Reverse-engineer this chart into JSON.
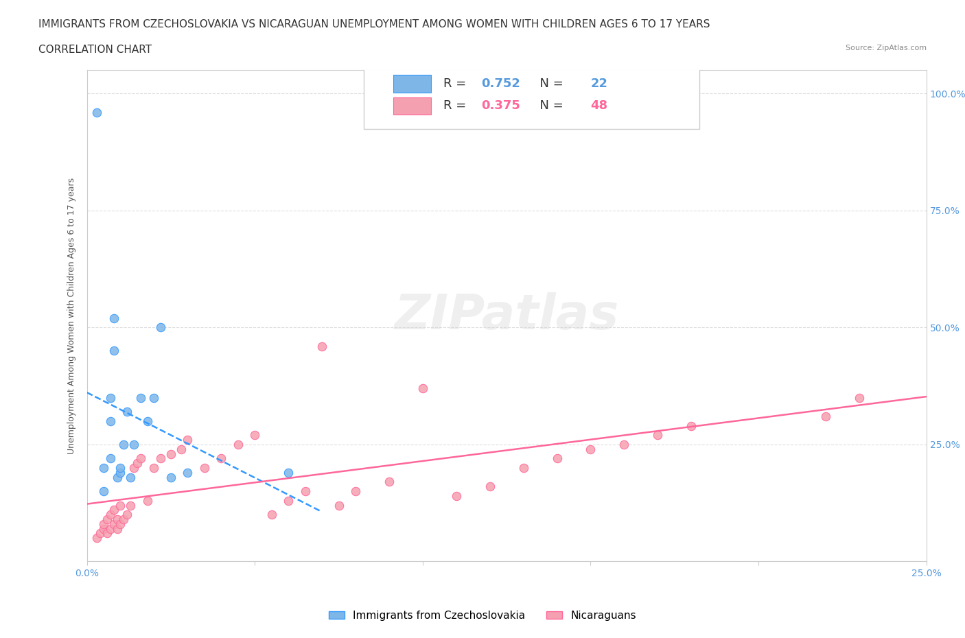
{
  "title_line1": "IMMIGRANTS FROM CZECHOSLOVAKIA VS NICARAGUAN UNEMPLOYMENT AMONG WOMEN WITH CHILDREN AGES 6 TO 17 YEARS",
  "title_line2": "CORRELATION CHART",
  "source_text": "Source: ZipAtlas.com",
  "xlabel": "",
  "ylabel": "Unemployment Among Women with Children Ages 6 to 17 years",
  "xlim": [
    0.0,
    0.25
  ],
  "ylim": [
    0.0,
    1.05
  ],
  "x_ticks": [
    0.0,
    0.05,
    0.1,
    0.15,
    0.2,
    0.25
  ],
  "x_tick_labels": [
    "0.0%",
    "",
    "",
    "",
    "",
    "25.0%"
  ],
  "y_ticks": [
    0.0,
    0.25,
    0.5,
    0.75,
    1.0
  ],
  "y_tick_labels": [
    "",
    "25.0%",
    "50.0%",
    "75.0%",
    "100.0%"
  ],
  "blue_color": "#7EB6E8",
  "pink_color": "#F5A0B0",
  "blue_line_color": "#3399FF",
  "pink_line_color": "#FF6699",
  "legend_box_color": "#F0F4FF",
  "watermark_text": "ZIPatlas",
  "R_blue": 0.752,
  "N_blue": 22,
  "R_pink": 0.375,
  "N_pink": 48,
  "blue_scatter_x": [
    0.005,
    0.005,
    0.007,
    0.007,
    0.007,
    0.008,
    0.008,
    0.009,
    0.01,
    0.01,
    0.011,
    0.012,
    0.013,
    0.014,
    0.016,
    0.018,
    0.02,
    0.022,
    0.025,
    0.03,
    0.06,
    0.003
  ],
  "blue_scatter_y": [
    0.15,
    0.2,
    0.22,
    0.3,
    0.35,
    0.45,
    0.52,
    0.18,
    0.19,
    0.2,
    0.25,
    0.32,
    0.18,
    0.25,
    0.35,
    0.3,
    0.35,
    0.5,
    0.18,
    0.19,
    0.19,
    0.96
  ],
  "pink_scatter_x": [
    0.003,
    0.004,
    0.005,
    0.005,
    0.006,
    0.006,
    0.007,
    0.007,
    0.008,
    0.008,
    0.009,
    0.009,
    0.01,
    0.01,
    0.011,
    0.012,
    0.013,
    0.014,
    0.015,
    0.016,
    0.018,
    0.02,
    0.022,
    0.025,
    0.028,
    0.03,
    0.035,
    0.04,
    0.045,
    0.05,
    0.055,
    0.06,
    0.065,
    0.07,
    0.075,
    0.08,
    0.09,
    0.1,
    0.11,
    0.12,
    0.13,
    0.14,
    0.15,
    0.16,
    0.17,
    0.18,
    0.22,
    0.23
  ],
  "pink_scatter_y": [
    0.05,
    0.06,
    0.07,
    0.08,
    0.06,
    0.09,
    0.07,
    0.1,
    0.08,
    0.11,
    0.07,
    0.09,
    0.08,
    0.12,
    0.09,
    0.1,
    0.12,
    0.2,
    0.21,
    0.22,
    0.13,
    0.2,
    0.22,
    0.23,
    0.24,
    0.26,
    0.2,
    0.22,
    0.25,
    0.27,
    0.1,
    0.13,
    0.15,
    0.46,
    0.12,
    0.15,
    0.17,
    0.37,
    0.14,
    0.16,
    0.2,
    0.22,
    0.24,
    0.25,
    0.27,
    0.29,
    0.31,
    0.35
  ],
  "background_color": "#FFFFFF",
  "grid_color": "#DDDDDD"
}
